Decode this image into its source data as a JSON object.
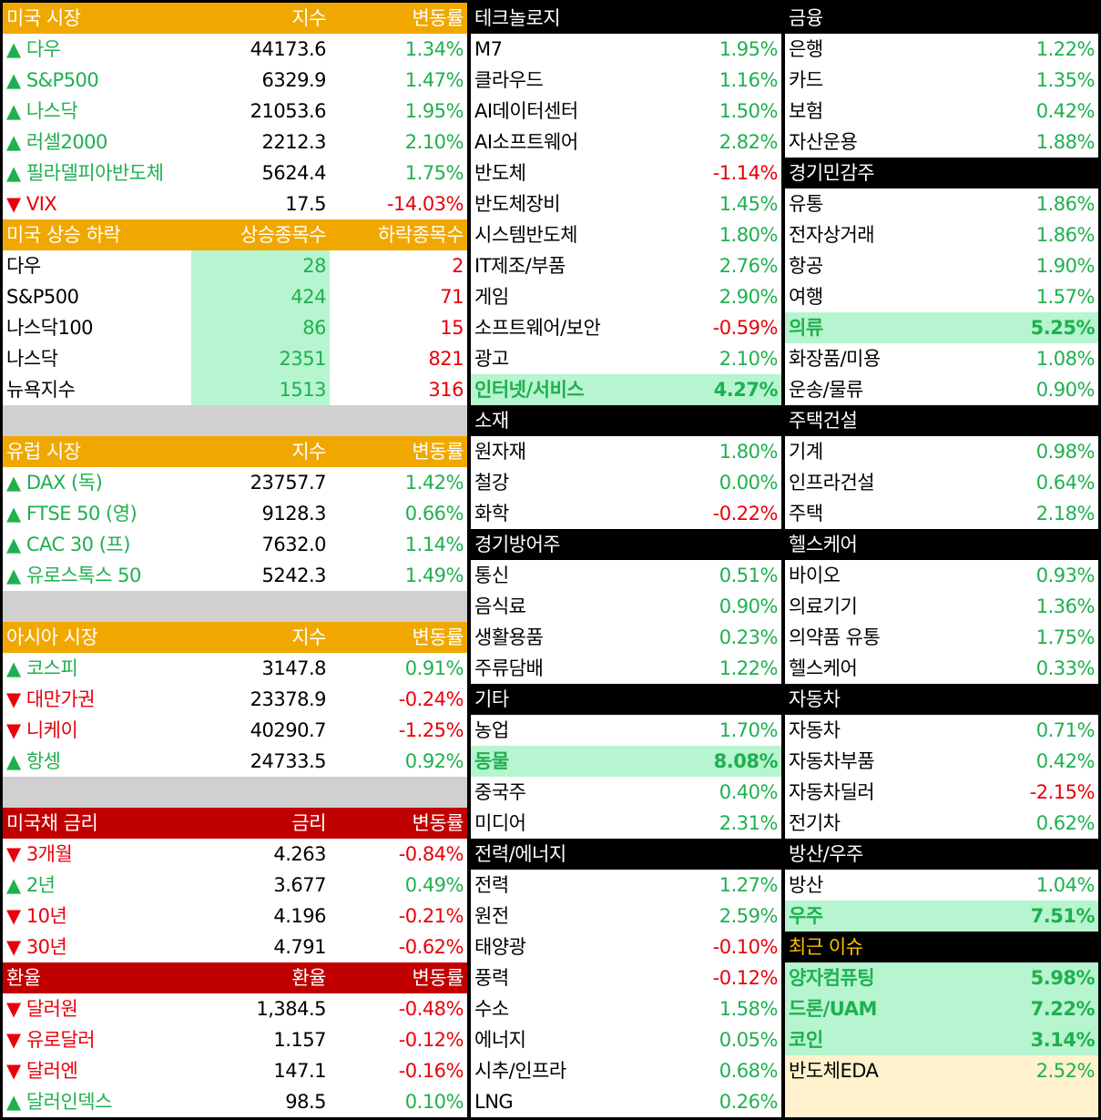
{
  "left": [
    {
      "header": [
        "미국 시장",
        "지수",
        "변동률"
      ],
      "header_bg": "#f0a800",
      "rows": [
        {
          "name": "▲ 다우",
          "value": "44173.6",
          "change": "1.34%"
        },
        {
          "name": "▲ S&P500",
          "value": "6329.9",
          "change": "1.47%"
        },
        {
          "name": "▲ 나스닥",
          "value": "21053.6",
          "change": "1.95%"
        },
        {
          "name": "▲ 러셀2000",
          "value": "2212.3",
          "change": "2.10%"
        },
        {
          "name": "▲ 필라델피아반도체",
          "value": "5624.4",
          "change": "1.75%"
        },
        {
          "name": "▼ VIX",
          "value": "17.5",
          "change": "-14.03%"
        }
      ]
    },
    {
      "header": [
        "미국 상승 하락",
        "상승종목수",
        "하락종목수"
      ],
      "header_bg": "#f0a800",
      "value_bg": "#b6f5cf",
      "column_colors": [
        "#000000",
        "#1fb04f",
        "#e8000b"
      ],
      "rows": [
        {
          "name": "다우",
          "value": "28",
          "change": "2"
        },
        {
          "name": "S&P500",
          "value": "424",
          "change": "71"
        },
        {
          "name": "나스닥100",
          "value": "86",
          "change": "15"
        },
        {
          "name": "나스닥",
          "value": "2351",
          "change": "821"
        },
        {
          "name": "뉴욕지수",
          "value": "1513",
          "change": "316"
        }
      ]
    },
    {
      "header": [
        "유럽 시장",
        "지수",
        "변동률"
      ],
      "header_bg": "#f0a800",
      "rows": [
        {
          "name": "▲ DAX (독)",
          "value": "23757.7",
          "change": "1.42%"
        },
        {
          "name": "▲ FTSE 50 (영)",
          "value": "9128.3",
          "change": "0.66%"
        },
        {
          "name": "▲ CAC 30 (프)",
          "value": "7632.0",
          "change": "1.14%"
        },
        {
          "name": "▲ 유로스톡스 50",
          "value": "5242.3",
          "change": "1.49%"
        }
      ]
    },
    {
      "header": [
        "아시아 시장",
        "지수",
        "변동률"
      ],
      "header_bg": "#f0a800",
      "rows": [
        {
          "name": "▲ 코스피",
          "value": "3147.8",
          "change": "0.91%"
        },
        {
          "name": "▼ 대만가권",
          "value": "23378.9",
          "change": "-0.24%"
        },
        {
          "name": "▼ 니케이",
          "value": "40290.7",
          "change": "-1.25%"
        },
        {
          "name": "▲ 항셍",
          "value": "24733.5",
          "change": "0.92%"
        }
      ]
    },
    {
      "header": [
        "미국채 금리",
        "금리",
        "변동률"
      ],
      "header_bg": "#c00000",
      "rows": [
        {
          "name": "▼ 3개월",
          "value": "4.263",
          "change": "-0.84%"
        },
        {
          "name": "▲ 2년",
          "value": "3.677",
          "change": "0.49%"
        },
        {
          "name": "▼ 10년",
          "value": "4.196",
          "change": "-0.21%"
        },
        {
          "name": "▼ 30년",
          "value": "4.791",
          "change": "-0.62%"
        }
      ]
    },
    {
      "header": [
        "환율",
        "환율",
        "변동률"
      ],
      "header_bg": "#c00000",
      "rows": [
        {
          "name": "▼ 달러원",
          "value": "1,384.5",
          "change": "-0.48%"
        },
        {
          "name": "▼ 유로달러",
          "value": "1.157",
          "change": "-0.12%"
        },
        {
          "name": "▼ 달러엔",
          "value": "147.1",
          "change": "-0.16%"
        },
        {
          "name": "▲ 달러인덱스",
          "value": "98.5",
          "change": "0.10%"
        }
      ]
    }
  ],
  "middle": [
    {
      "header": "테크놀로지",
      "rows": [
        {
          "name": "M7",
          "change": "1.95%"
        },
        {
          "name": "클라우드",
          "change": "1.16%"
        },
        {
          "name": "AI데이터센터",
          "change": "1.50%"
        },
        {
          "name": "AI소프트웨어",
          "change": "2.82%"
        },
        {
          "name": "반도체",
          "change": "-1.14%"
        },
        {
          "name": "반도체장비",
          "change": "1.45%"
        },
        {
          "name": "시스템반도체",
          "change": "1.80%"
        },
        {
          "name": "IT제조/부품",
          "change": "2.76%"
        },
        {
          "name": "게임",
          "change": "2.90%"
        },
        {
          "name": "소프트웨어/보안",
          "change": "-0.59%"
        },
        {
          "name": "광고",
          "change": "2.10%"
        },
        {
          "name": "인터넷/서비스",
          "change": "4.27%",
          "bg": "#b6f5cf"
        }
      ]
    },
    {
      "header": "소재",
      "rows": [
        {
          "name": "원자재",
          "change": "1.80%"
        },
        {
          "name": "철강",
          "change": "0.00%"
        },
        {
          "name": "화학",
          "change": "-0.22%"
        }
      ]
    },
    {
      "header": "경기방어주",
      "rows": [
        {
          "name": "통신",
          "change": "0.51%"
        },
        {
          "name": "음식료",
          "change": "0.90%"
        },
        {
          "name": "생활용품",
          "change": "0.23%"
        },
        {
          "name": "주류담배",
          "change": "1.22%"
        }
      ]
    },
    {
      "header": "기타",
      "rows": [
        {
          "name": "농업",
          "change": "1.70%"
        },
        {
          "name": "동물",
          "change": "8.08%",
          "bg": "#b6f5cf"
        },
        {
          "name": "중국주",
          "change": "0.40%"
        },
        {
          "name": "미디어",
          "change": "2.31%"
        }
      ]
    },
    {
      "header": "전력/에너지",
      "rows": [
        {
          "name": "전력",
          "change": "1.27%"
        },
        {
          "name": "원전",
          "change": "2.59%"
        },
        {
          "name": "태양광",
          "change": "-0.10%"
        },
        {
          "name": "풍력",
          "change": "-0.12%"
        },
        {
          "name": "수소",
          "change": "1.58%"
        },
        {
          "name": "에너지",
          "change": "0.05%"
        },
        {
          "name": "시추/인프라",
          "change": "0.68%"
        },
        {
          "name": "LNG",
          "change": "0.26%"
        }
      ]
    }
  ],
  "right": [
    {
      "header": "금융",
      "rows": [
        {
          "name": "은행",
          "change": "1.22%"
        },
        {
          "name": "카드",
          "change": "1.35%"
        },
        {
          "name": "보험",
          "change": "0.42%"
        },
        {
          "name": "자산운용",
          "change": "1.88%"
        }
      ]
    },
    {
      "header": "경기민감주",
      "rows": [
        {
          "name": "유통",
          "change": "1.86%"
        },
        {
          "name": "전자상거래",
          "change": "1.86%"
        },
        {
          "name": "항공",
          "change": "1.90%"
        },
        {
          "name": "여행",
          "change": "1.57%"
        },
        {
          "name": "의류",
          "change": "5.25%",
          "bg": "#b6f5cf"
        },
        {
          "name": "화장품/미용",
          "change": "1.08%"
        },
        {
          "name": "운송/물류",
          "change": "0.90%"
        }
      ]
    },
    {
      "header": "주택건설",
      "rows": [
        {
          "name": "기계",
          "change": "0.98%"
        },
        {
          "name": "인프라건설",
          "change": "0.64%"
        },
        {
          "name": "주택",
          "change": "2.18%"
        }
      ]
    },
    {
      "header": "헬스케어",
      "rows": [
        {
          "name": "바이오",
          "change": "0.93%"
        },
        {
          "name": "의료기기",
          "change": "1.36%"
        },
        {
          "name": "의약품 유통",
          "change": "1.75%"
        },
        {
          "name": "헬스케어",
          "change": "0.33%"
        }
      ]
    },
    {
      "header": "자동차",
      "rows": [
        {
          "name": "자동차",
          "change": "0.71%"
        },
        {
          "name": "자동차부품",
          "change": "0.42%"
        },
        {
          "name": "자동차딜러",
          "change": "-2.15%"
        },
        {
          "name": "전기차",
          "change": "0.62%"
        }
      ]
    },
    {
      "header": "방산/우주",
      "rows": [
        {
          "name": "방산",
          "change": "1.04%"
        },
        {
          "name": "우주",
          "change": "7.51%",
          "bg": "#b6f5cf"
        }
      ]
    },
    {
      "header": "최근 이슈",
      "header_color": "#ffc000",
      "rows": [
        {
          "name": "양자컴퓨팅",
          "change": "5.98%",
          "bg": "#b6f5cf"
        },
        {
          "name": "드론/UAM",
          "change": "7.22%",
          "bg": "#b6f5cf"
        },
        {
          "name": "코인",
          "change": "3.14%",
          "bg": "#b6f5cf"
        },
        {
          "name": "반도체EDA",
          "change": "2.52%",
          "bg": "#fff2cc"
        }
      ]
    }
  ]
}
